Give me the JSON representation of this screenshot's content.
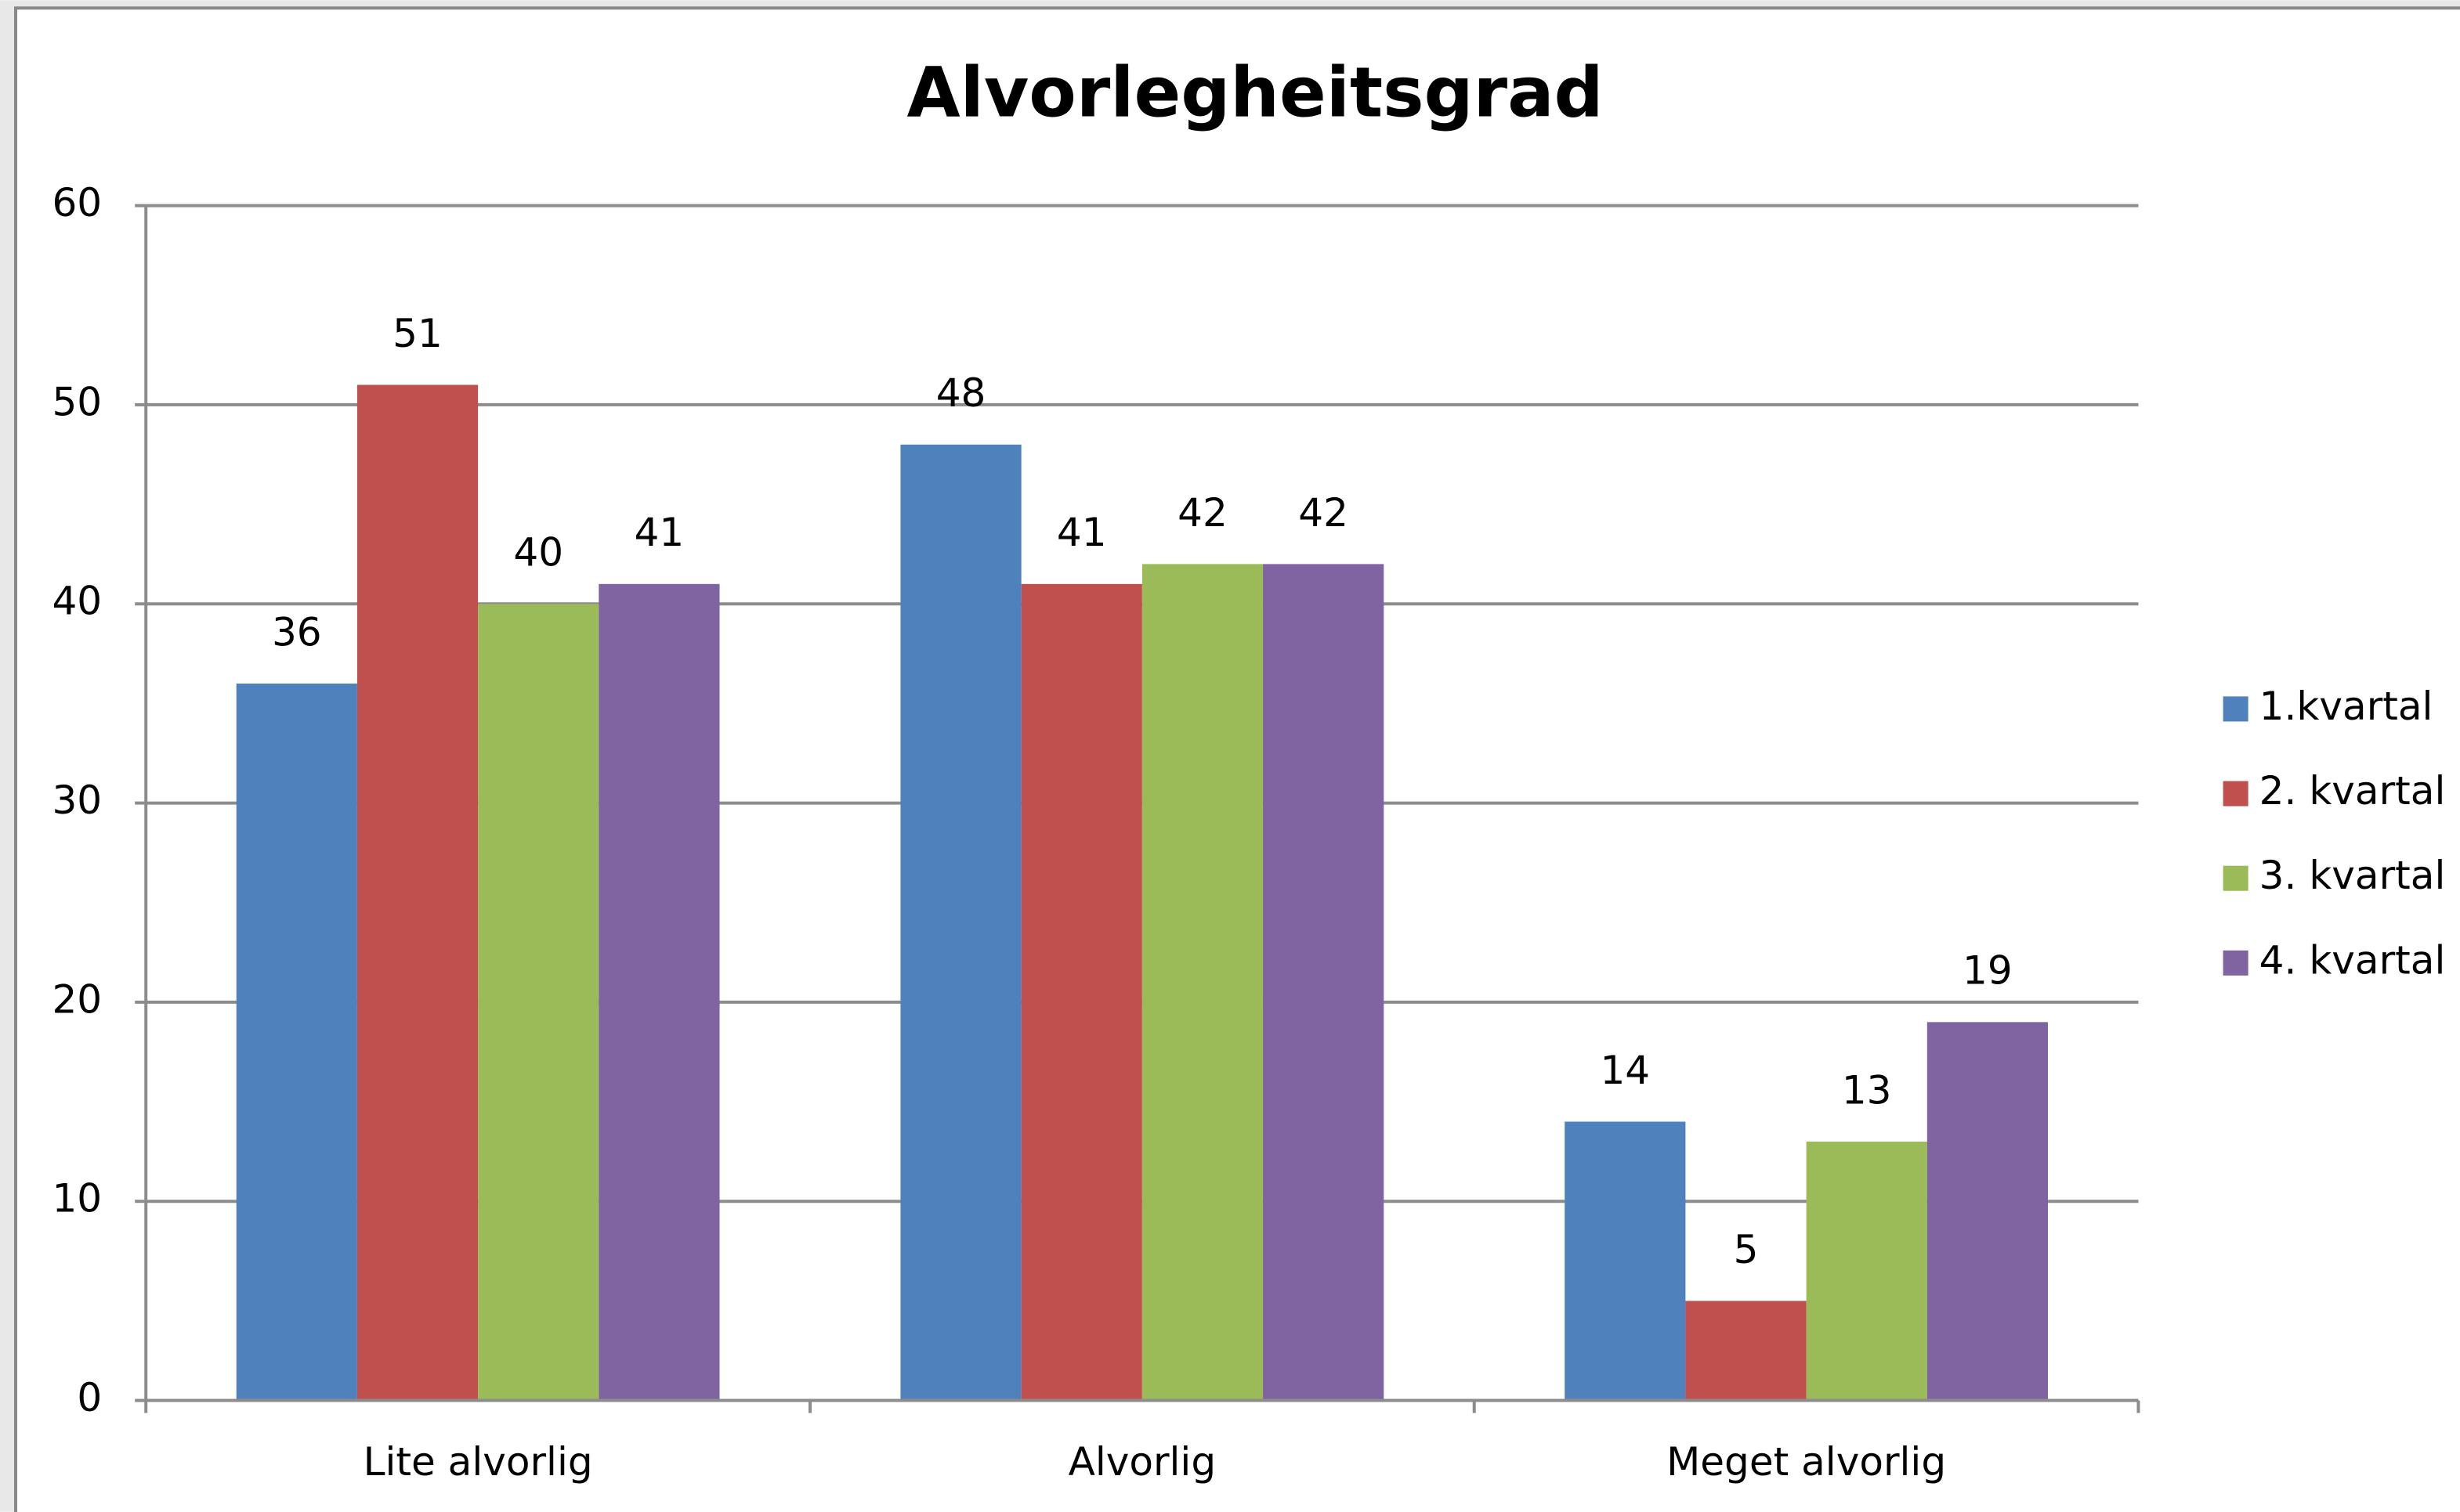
{
  "chart_data": {
    "type": "bar",
    "title": "Alvorlegheitsgrad",
    "categories": [
      "Lite alvorlig",
      "Alvorlig",
      "Meget alvorlig"
    ],
    "series": [
      {
        "name": "1.kvartal",
        "color": "#4f81bd",
        "values": [
          36,
          48,
          14
        ]
      },
      {
        "name": "2. kvartal",
        "color": "#c0504d",
        "values": [
          51,
          41,
          5
        ]
      },
      {
        "name": "3. kvartal",
        "color": "#9bbb59",
        "values": [
          40,
          42,
          13
        ]
      },
      {
        "name": "4. kvartal",
        "color": "#8064a2",
        "values": [
          41,
          42,
          19
        ]
      }
    ],
    "ylim": [
      0,
      60
    ],
    "yticks": [
      0,
      10,
      20,
      30,
      40,
      50,
      60
    ],
    "grid": true,
    "legend": "right"
  }
}
